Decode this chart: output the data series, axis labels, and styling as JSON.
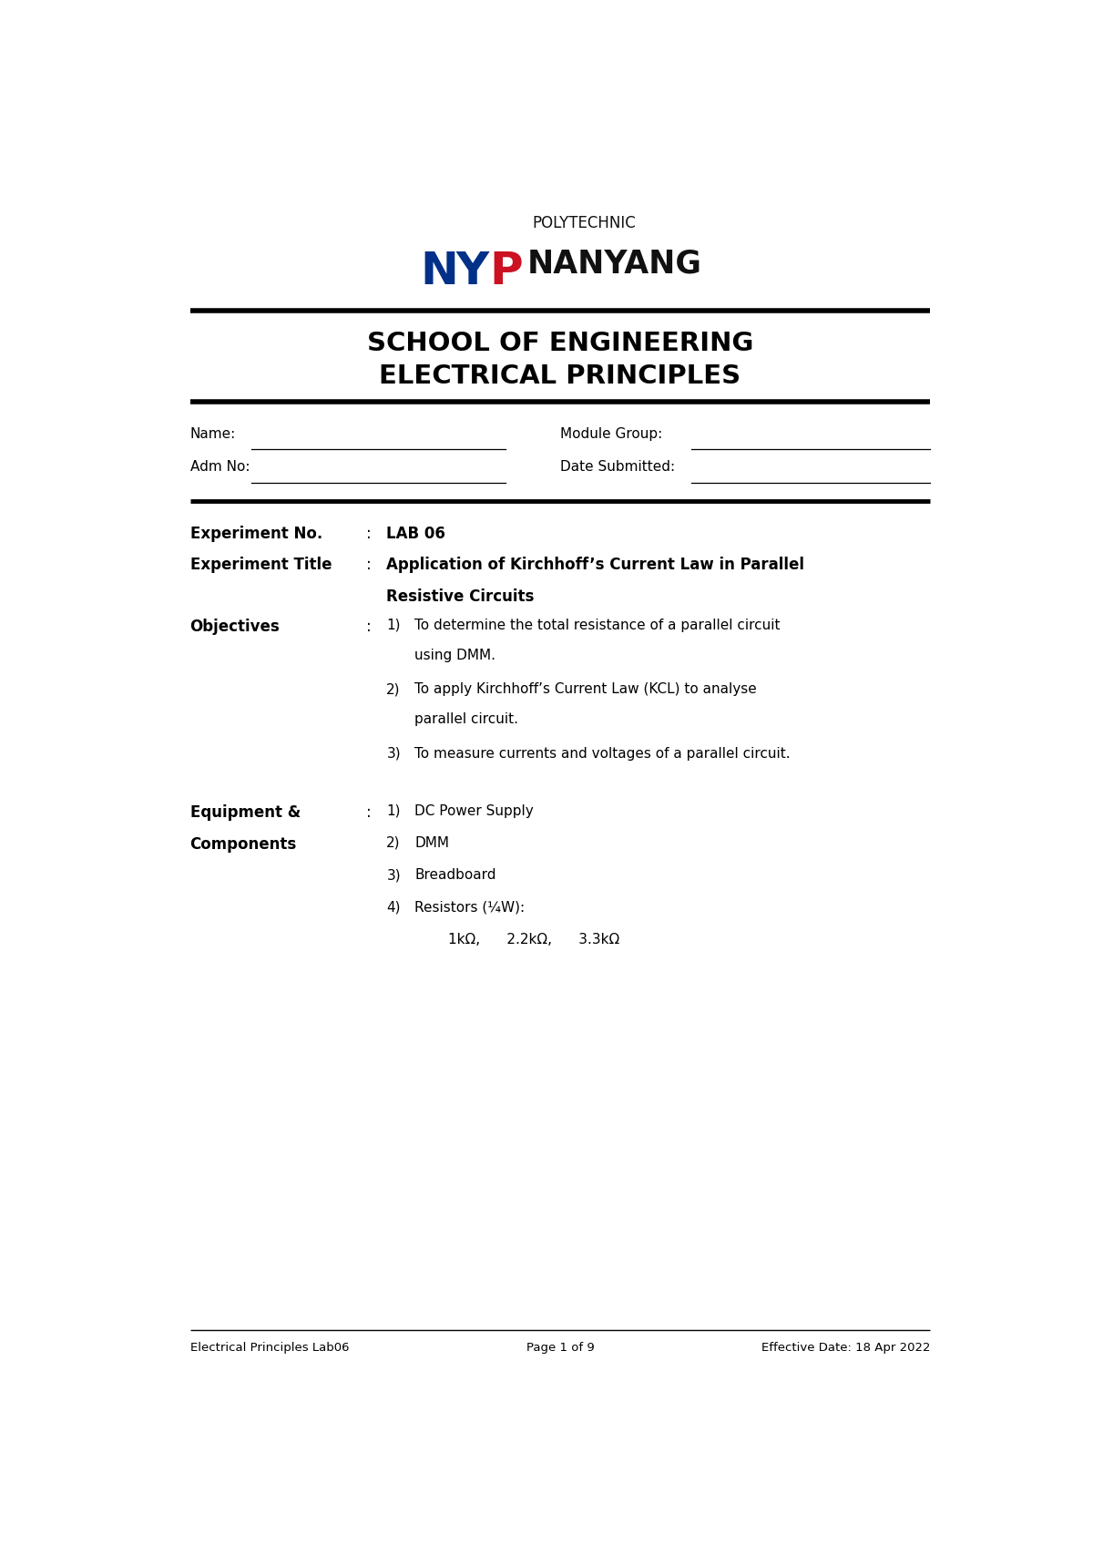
{
  "page_width": 12.0,
  "page_height": 16.96,
  "bg_color": "#ffffff",
  "school_line1": "SCHOOL OF ENGINEERING",
  "school_line2": "ELECTRICAL PRINCIPLES",
  "exp_no_value": "LAB 06",
  "exp_title_value1": "Application of Kirchhoff’s Current Law in Parallel",
  "exp_title_value2": "Resistive Circuits",
  "obj_item1_line1": "To determine the total resistance of a parallel circuit",
  "obj_item1_line2": "using DMM.",
  "obj_item2_line1": "To apply Kirchhoff’s Current Law (KCL) to analyse",
  "obj_item2_line2": "parallel circuit.",
  "obj_item3": "To measure currents and voltages of a parallel circuit.",
  "equip_item1": "DC Power Supply",
  "equip_item2": "DMM",
  "equip_item3": "Breadboard",
  "equip_item4": "Resistors (¼W):",
  "resistors_line": "1kΩ,      2.2kΩ,      3.3kΩ",
  "footer_left": "Electrical Principles Lab06",
  "footer_center": "Page 1 of 9",
  "footer_right": "Effective Date: 18 Apr 2022",
  "text_color": "#000000",
  "nyp_blue": "#003087",
  "nyp_red": "#cc1122",
  "nyp_dark": "#111111",
  "ml": 0.063,
  "mr": 0.937
}
